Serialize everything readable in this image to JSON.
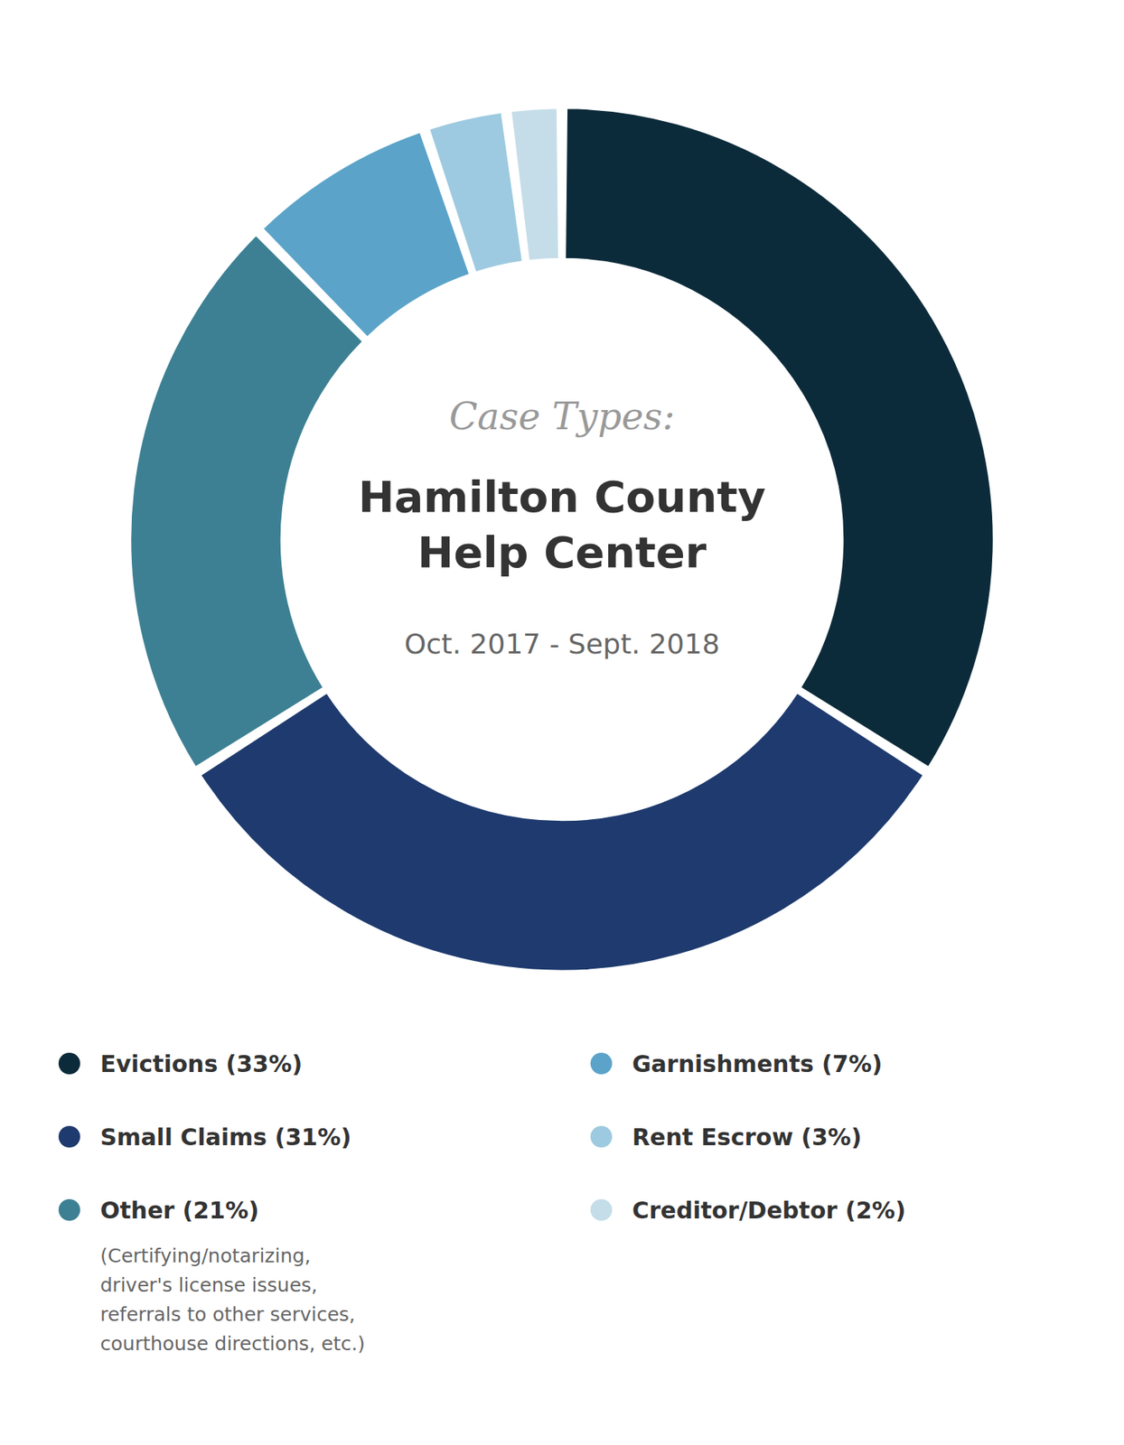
{
  "chart_data": {
    "type": "donut",
    "title": "Case Types:",
    "subtitle": "Hamilton County\nHelp Center",
    "annotations": [
      "Oct. 2017 - Sept. 2018",
      "(Certifying/notarizing,\ndriver's license issues,\nreferrals to other services,\ncourthouse directions, etc.)"
    ],
    "categories": [
      "Evictions (33%)",
      "Small Claims (31%)",
      "Other (21%)",
      "Garnishments (7%)",
      "Rent Escrow (3%)",
      "Creditor/Debtor (2%)"
    ],
    "values": [
      33,
      31,
      21,
      7,
      3,
      2
    ],
    "colors": [
      "#0c2b3a",
      "#1e3a6e",
      "#3d8093",
      "#5ba3c9",
      "#9dcae0",
      "#c5dde8"
    ]
  }
}
